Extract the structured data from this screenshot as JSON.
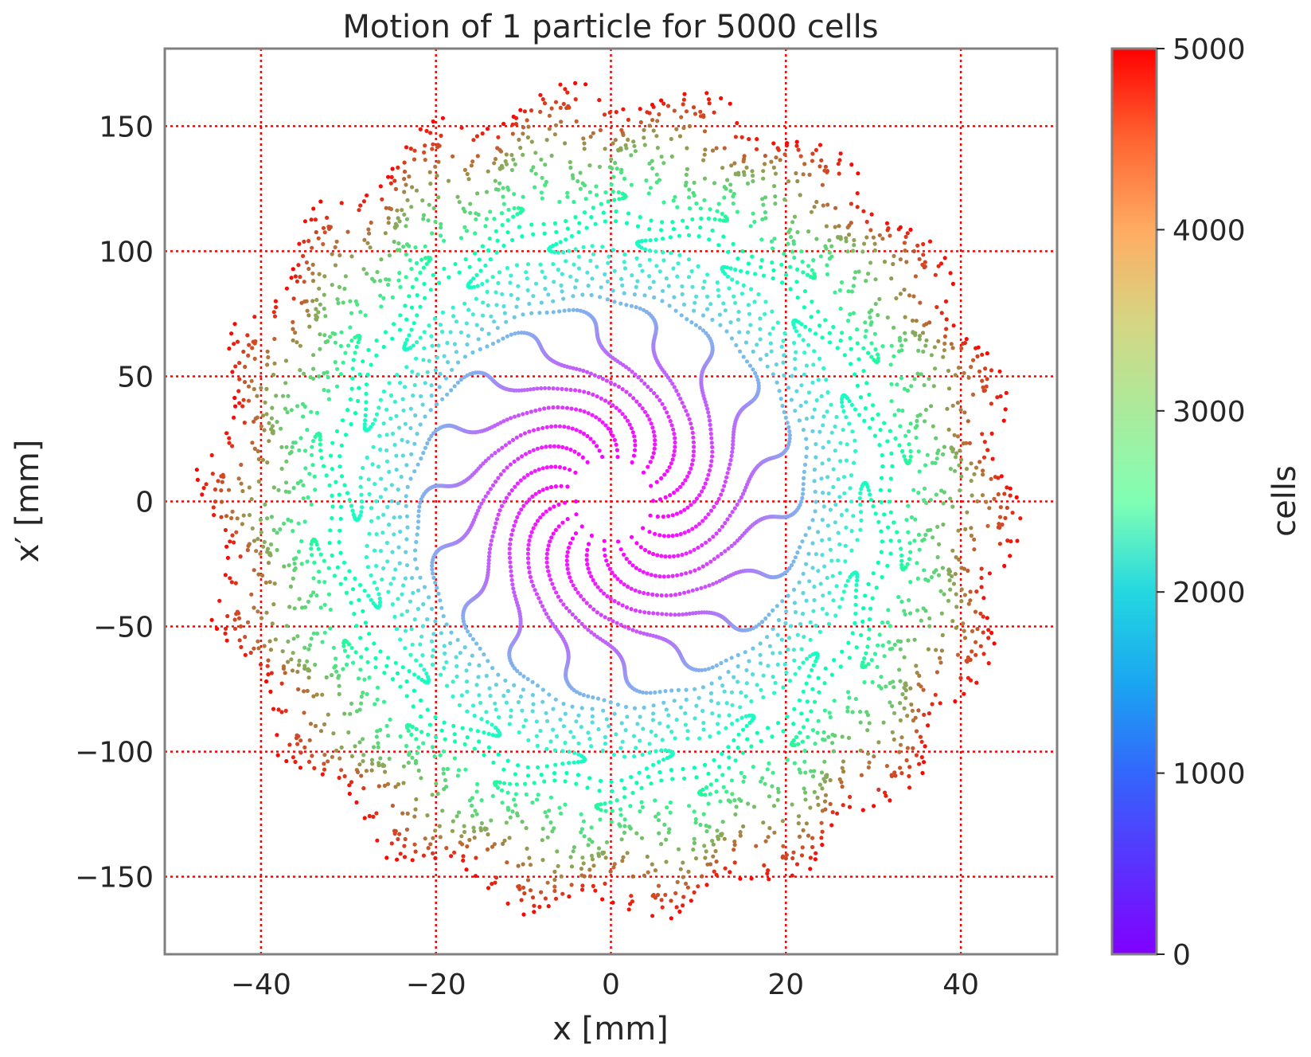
{
  "chart_data": {
    "type": "scatter",
    "title": "Motion of 1 particle for 5000 cells",
    "xlabel": "x [mm]",
    "ylabel": "x′ [mm]",
    "xlim": [
      -51,
      51
    ],
    "ylim": [
      -181,
      181
    ],
    "x_ticks": [
      -40,
      -20,
      0,
      20,
      40
    ],
    "x_tick_labels": [
      "−40",
      "−20",
      "0",
      "20",
      "40"
    ],
    "y_ticks": [
      -150,
      -100,
      -50,
      0,
      50,
      100,
      150
    ],
    "y_tick_labels": [
      "−150",
      "−100",
      "−50",
      "0",
      "50",
      "100",
      "150"
    ],
    "grid": true,
    "grid_style": "dotted",
    "grid_color": "#ff0000",
    "series": [
      {
        "color_by": "cells",
        "n_points": 5000,
        "start_point": [
          -4,
          0
        ],
        "end_radius_x": 46,
        "end_radius_y": 164,
        "spiral_arms": 18
      }
    ],
    "colorbar": {
      "label": "cells",
      "min": 0,
      "max": 5000,
      "ticks": [
        0,
        1000,
        2000,
        3000,
        4000,
        5000
      ],
      "tick_labels": [
        "0",
        "1000",
        "2000",
        "3000",
        "4000",
        "5000"
      ],
      "colormap": "rainbow"
    }
  }
}
